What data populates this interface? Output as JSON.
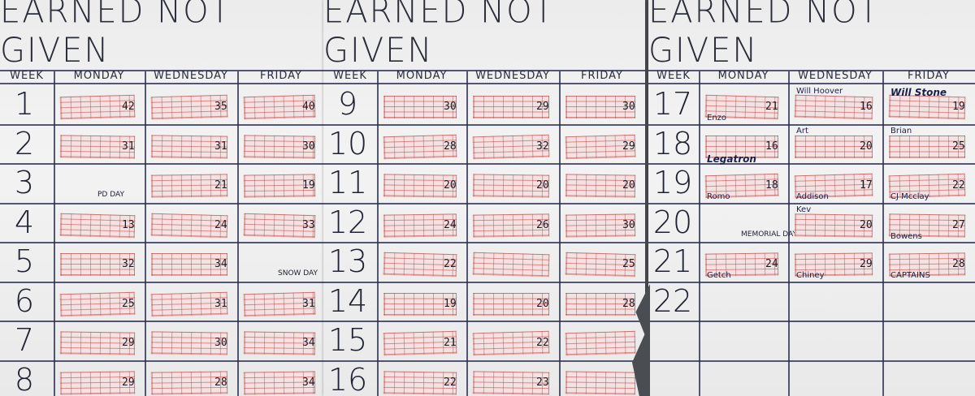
{
  "posters": [
    {
      "title": "EARNED NOT GIVEN",
      "headers": [
        "WEEK",
        "MONDAY",
        "WEDNESDAY",
        "FRIDAY"
      ],
      "rows": [
        {
          "week": "1",
          "cells": [
            {
              "value": "42",
              "brick": true
            },
            {
              "value": "35",
              "brick": true
            },
            {
              "value": "40",
              "brick": true
            }
          ]
        },
        {
          "week": "2",
          "cells": [
            {
              "value": "31",
              "brick": true
            },
            {
              "value": "31",
              "brick": true
            },
            {
              "value": "30",
              "brick": true
            }
          ]
        },
        {
          "week": "3",
          "cells": [
            {
              "value": "",
              "brick": false,
              "note": "PD DAY"
            },
            {
              "value": "21",
              "brick": true
            },
            {
              "value": "19",
              "brick": true
            }
          ]
        },
        {
          "week": "4",
          "cells": [
            {
              "value": "13",
              "brick": true
            },
            {
              "value": "24",
              "brick": true
            },
            {
              "value": "33",
              "brick": true
            }
          ]
        },
        {
          "week": "5",
          "cells": [
            {
              "value": "32",
              "brick": true
            },
            {
              "value": "34",
              "brick": true
            },
            {
              "value": "",
              "brick": false,
              "note": "SNOW DAY"
            }
          ]
        },
        {
          "week": "6",
          "cells": [
            {
              "value": "25",
              "brick": true
            },
            {
              "value": "31",
              "brick": true
            },
            {
              "value": "31",
              "brick": true
            }
          ]
        },
        {
          "week": "7",
          "cells": [
            {
              "value": "29",
              "brick": true
            },
            {
              "value": "30",
              "brick": true
            },
            {
              "value": "34",
              "brick": true
            }
          ]
        },
        {
          "week": "8",
          "cells": [
            {
              "value": "29",
              "brick": true
            },
            {
              "value": "28",
              "brick": true
            },
            {
              "value": "34",
              "brick": true
            }
          ]
        }
      ]
    },
    {
      "title": "EARNED NOT GIVEN",
      "headers": [
        "WEEK",
        "MONDAY",
        "WEDNESDAY",
        "FRIDAY"
      ],
      "rows": [
        {
          "week": "9",
          "cells": [
            {
              "value": "30",
              "brick": true
            },
            {
              "value": "29",
              "brick": true
            },
            {
              "value": "30",
              "brick": true
            }
          ]
        },
        {
          "week": "10",
          "cells": [
            {
              "value": "28",
              "brick": true
            },
            {
              "value": "32",
              "brick": true
            },
            {
              "value": "29",
              "brick": true
            }
          ]
        },
        {
          "week": "11",
          "cells": [
            {
              "value": "20",
              "brick": true
            },
            {
              "value": "20",
              "brick": true
            },
            {
              "value": "20",
              "brick": true
            }
          ]
        },
        {
          "week": "12",
          "cells": [
            {
              "value": "24",
              "brick": true
            },
            {
              "value": "26",
              "brick": true
            },
            {
              "value": "30",
              "brick": true
            }
          ]
        },
        {
          "week": "13",
          "cells": [
            {
              "value": "22",
              "brick": true
            },
            {
              "value": "",
              "brick": true
            },
            {
              "value": "25",
              "brick": true
            }
          ]
        },
        {
          "week": "14",
          "cells": [
            {
              "value": "19",
              "brick": true
            },
            {
              "value": "20",
              "brick": true
            },
            {
              "value": "28",
              "brick": true
            }
          ]
        },
        {
          "week": "15",
          "cells": [
            {
              "value": "21",
              "brick": true
            },
            {
              "value": "22",
              "brick": true
            },
            {
              "value": "",
              "brick": true
            }
          ]
        },
        {
          "week": "16",
          "cells": [
            {
              "value": "22",
              "brick": true
            },
            {
              "value": "23",
              "brick": true
            },
            {
              "value": "",
              "brick": true
            }
          ]
        }
      ]
    },
    {
      "title": "EARNED NOT GIVEN",
      "headers": [
        "WEEK",
        "MONDAY",
        "WEDNESDAY",
        "FRIDAY"
      ],
      "rows": [
        {
          "week": "17",
          "cells": [
            {
              "value": "21",
              "brick": true,
              "name": "Enzo"
            },
            {
              "value": "16",
              "brick": true,
              "name": "Will Hoover"
            },
            {
              "value": "19",
              "brick": true,
              "name": "Will Stone"
            }
          ]
        },
        {
          "week": "18",
          "cells": [
            {
              "value": "16",
              "brick": true,
              "name": "Legatron"
            },
            {
              "value": "20",
              "brick": true,
              "name": "Art"
            },
            {
              "value": "25",
              "brick": true,
              "name": "Brian"
            }
          ]
        },
        {
          "week": "19",
          "cells": [
            {
              "value": "18",
              "brick": true,
              "name": "Romo"
            },
            {
              "value": "17",
              "brick": true,
              "name": "Addison"
            },
            {
              "value": "22",
              "brick": true,
              "name": "CJ Mcclay"
            }
          ]
        },
        {
          "week": "20",
          "cells": [
            {
              "value": "",
              "brick": false,
              "note": "MEMORIAL DAY"
            },
            {
              "value": "20",
              "brick": true,
              "name": "Kev"
            },
            {
              "value": "27",
              "brick": true,
              "name": "Bowens"
            }
          ]
        },
        {
          "week": "21",
          "cells": [
            {
              "value": "24",
              "brick": true,
              "name": "Getch"
            },
            {
              "value": "29",
              "brick": true,
              "name": "Chiney"
            },
            {
              "value": "28",
              "brick": true,
              "name": "CAPTAINS"
            }
          ]
        },
        {
          "week": "22",
          "cells": [
            {
              "value": "",
              "brick": false
            },
            {
              "value": "",
              "brick": false
            },
            {
              "value": "",
              "brick": false
            }
          ]
        }
      ]
    }
  ]
}
